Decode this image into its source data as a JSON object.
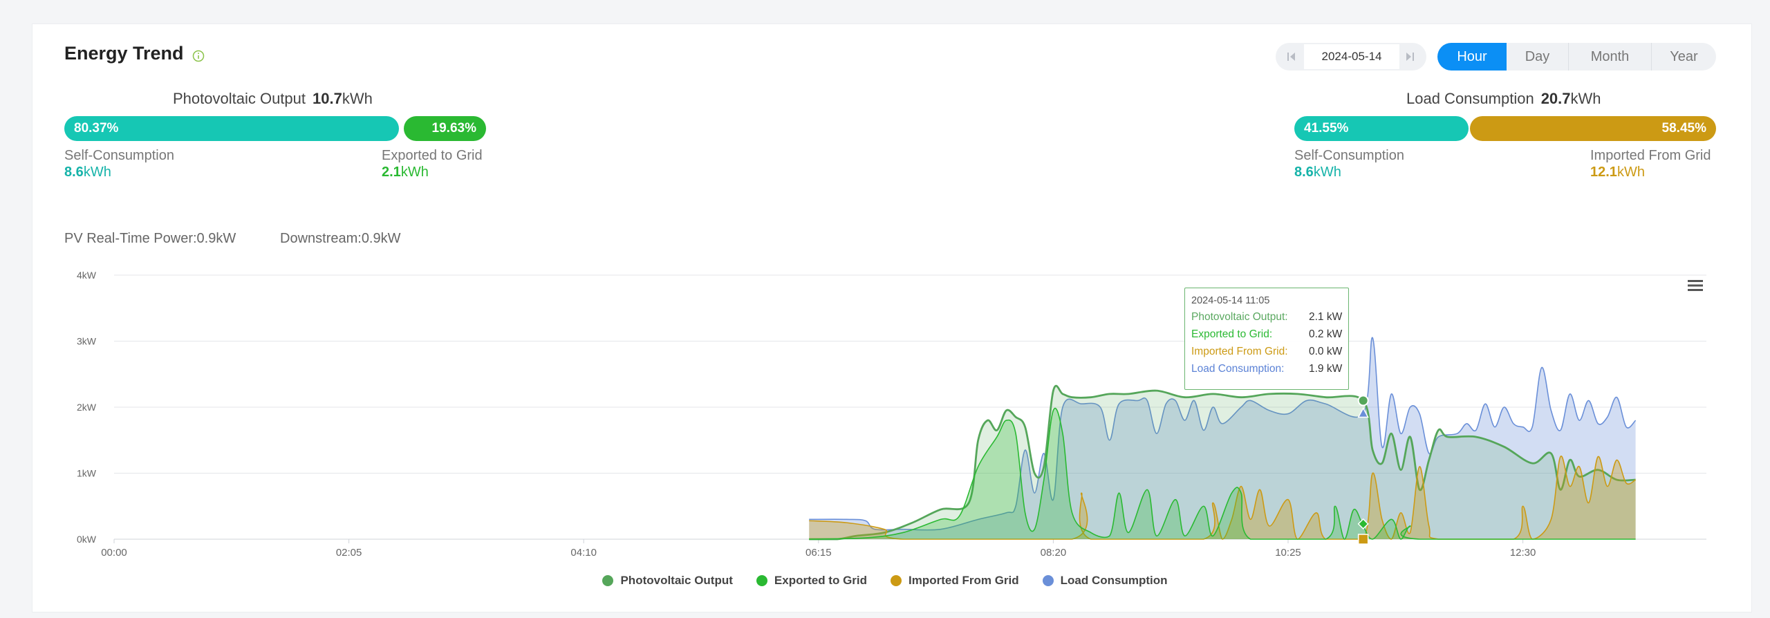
{
  "header": {
    "title": "Energy Trend"
  },
  "date_picker": {
    "value": "2024-05-14"
  },
  "range_tabs": [
    {
      "label": "Hour",
      "active": true
    },
    {
      "label": "Day",
      "active": false
    },
    {
      "label": "Month",
      "active": false
    },
    {
      "label": "Year",
      "active": false
    }
  ],
  "pv_summary": {
    "label": "Photovoltaic Output",
    "total": "10.7",
    "unit": "kWh",
    "self_pct": "80.37%",
    "export_pct": "19.63%",
    "self_fraction": 0.8037,
    "self_label": "Self-Consumption",
    "self_value": "8.6",
    "export_label": "Exported to Grid",
    "export_value": "2.1"
  },
  "load_summary": {
    "label": "Load Consumption",
    "total": "20.7",
    "unit": "kWh",
    "self_pct": "41.55%",
    "import_pct": "58.45%",
    "self_fraction": 0.4155,
    "self_label": "Self-Consumption",
    "self_value": "8.6",
    "import_label": "Imported From Grid",
    "import_value": "12.1"
  },
  "realtime": {
    "pv": "PV Real-Time Power:0.9kW",
    "downstream": "Downstream:0.9kW"
  },
  "tooltip": {
    "date": "2024-05-14 11:05",
    "rows": [
      {
        "name": "Photovoltaic Output:",
        "value": "2.1 kW",
        "color": "#5aa860"
      },
      {
        "name": "Exported to Grid:",
        "value": "0.2 kW",
        "color": "#2ab932"
      },
      {
        "name": "Imported From Grid:",
        "value": "0.0 kW",
        "color": "#cc9a14"
      },
      {
        "name": "Load Consumption:",
        "value": "1.9 kW",
        "color": "#5b82d6"
      }
    ]
  },
  "colors": {
    "teal": "#16c7b4",
    "green": "#2ab932",
    "gold": "#cc9a14",
    "pv": "#55a65a",
    "exported": "#2ab932",
    "imported": "#cc9a14",
    "load": "#6a8fd8"
  },
  "chart_data": {
    "type": "area",
    "x_ticks": [
      "00:00",
      "02:05",
      "04:10",
      "06:15",
      "08:20",
      "10:25",
      "12:30"
    ],
    "y_ticks": [
      "0kW",
      "1kW",
      "2kW",
      "3kW",
      "4kW"
    ],
    "ylim": [
      0,
      4
    ],
    "grid": true,
    "legend_position": "bottom",
    "series": [
      {
        "name": "Photovoltaic Output",
        "color": "#55a65a",
        "points": [
          [
            "06:10",
            0.0
          ],
          [
            "06:25",
            0.0
          ],
          [
            "06:35",
            0.05
          ],
          [
            "06:50",
            0.1
          ],
          [
            "07:05",
            0.25
          ],
          [
            "07:20",
            0.45
          ],
          [
            "07:35",
            0.55
          ],
          [
            "07:40",
            1.5
          ],
          [
            "07:45",
            1.8
          ],
          [
            "07:50",
            1.65
          ],
          [
            "07:55",
            1.95
          ],
          [
            "08:00",
            1.85
          ],
          [
            "08:05",
            1.7
          ],
          [
            "08:10",
            1.0
          ],
          [
            "08:15",
            1.1
          ],
          [
            "08:20",
            2.25
          ],
          [
            "08:25",
            2.2
          ],
          [
            "08:30",
            2.15
          ],
          [
            "08:40",
            2.15
          ],
          [
            "08:50",
            2.2
          ],
          [
            "09:00",
            2.2
          ],
          [
            "09:15",
            2.25
          ],
          [
            "09:30",
            2.15
          ],
          [
            "09:45",
            2.2
          ],
          [
            "10:00",
            2.15
          ],
          [
            "10:15",
            2.2
          ],
          [
            "10:30",
            2.2
          ],
          [
            "10:45",
            2.15
          ],
          [
            "11:05",
            2.1
          ],
          [
            "11:10",
            1.35
          ],
          [
            "11:15",
            1.15
          ],
          [
            "11:20",
            1.6
          ],
          [
            "11:25",
            1.05
          ],
          [
            "11:30",
            1.55
          ],
          [
            "11:35",
            0.75
          ],
          [
            "11:40",
            1.2
          ],
          [
            "11:45",
            1.65
          ],
          [
            "11:50",
            1.55
          ],
          [
            "12:05",
            1.55
          ],
          [
            "12:20",
            1.4
          ],
          [
            "12:35",
            1.15
          ],
          [
            "12:45",
            1.3
          ],
          [
            "12:50",
            0.75
          ],
          [
            "12:55",
            1.2
          ],
          [
            "13:00",
            0.95
          ],
          [
            "13:10",
            1.05
          ],
          [
            "13:20",
            0.9
          ],
          [
            "13:30",
            0.9
          ]
        ]
      },
      {
        "name": "Exported to Grid",
        "color": "#2ab932",
        "points": [
          [
            "06:10",
            0.0
          ],
          [
            "06:40",
            0.02
          ],
          [
            "07:00",
            0.1
          ],
          [
            "07:20",
            0.3
          ],
          [
            "07:30",
            0.35
          ],
          [
            "07:40",
            1.1
          ],
          [
            "07:50",
            1.55
          ],
          [
            "07:55",
            1.8
          ],
          [
            "08:00",
            1.6
          ],
          [
            "08:05",
            0.4
          ],
          [
            "08:10",
            0.15
          ],
          [
            "08:15",
            0.9
          ],
          [
            "08:20",
            1.95
          ],
          [
            "08:25",
            1.6
          ],
          [
            "08:30",
            0.4
          ],
          [
            "08:40",
            0.1
          ],
          [
            "08:50",
            0.05
          ],
          [
            "08:55",
            0.7
          ],
          [
            "09:00",
            0.1
          ],
          [
            "09:10",
            0.75
          ],
          [
            "09:15",
            0.05
          ],
          [
            "09:25",
            0.6
          ],
          [
            "09:30",
            0.05
          ],
          [
            "09:40",
            0.5
          ],
          [
            "09:45",
            0.05
          ],
          [
            "09:55",
            0.7
          ],
          [
            "10:00",
            0.7
          ],
          [
            "10:05",
            0.0
          ],
          [
            "10:45",
            0.0
          ],
          [
            "10:50",
            0.5
          ],
          [
            "10:55",
            0.0
          ],
          [
            "11:00",
            0.45
          ],
          [
            "11:05",
            0.2
          ],
          [
            "11:10",
            0.0
          ],
          [
            "11:20",
            0.3
          ],
          [
            "11:25",
            0.0
          ],
          [
            "11:30",
            0.2
          ],
          [
            "11:35",
            0.0
          ],
          [
            "13:30",
            0.0
          ]
        ]
      },
      {
        "name": "Imported From Grid",
        "color": "#cc9a14",
        "points": [
          [
            "06:10",
            0.28
          ],
          [
            "06:30",
            0.25
          ],
          [
            "06:50",
            0.15
          ],
          [
            "07:00",
            0.0
          ],
          [
            "08:30",
            0.0
          ],
          [
            "08:35",
            0.7
          ],
          [
            "08:40",
            0.0
          ],
          [
            "09:40",
            0.0
          ],
          [
            "09:45",
            0.55
          ],
          [
            "09:50",
            0.0
          ],
          [
            "09:55",
            0.3
          ],
          [
            "10:00",
            0.8
          ],
          [
            "10:05",
            0.3
          ],
          [
            "10:10",
            0.75
          ],
          [
            "10:15",
            0.2
          ],
          [
            "10:25",
            0.6
          ],
          [
            "10:30",
            0.0
          ],
          [
            "10:40",
            0.4
          ],
          [
            "10:45",
            0.0
          ],
          [
            "11:05",
            0.0
          ],
          [
            "11:10",
            1.0
          ],
          [
            "11:15",
            0.3
          ],
          [
            "11:20",
            0.0
          ],
          [
            "11:25",
            0.4
          ],
          [
            "11:30",
            0.1
          ],
          [
            "11:35",
            1.1
          ],
          [
            "11:40",
            0.2
          ],
          [
            "11:45",
            0.0
          ],
          [
            "12:25",
            0.0
          ],
          [
            "12:30",
            0.5
          ],
          [
            "12:35",
            0.0
          ],
          [
            "12:45",
            0.3
          ],
          [
            "12:50",
            1.25
          ],
          [
            "12:55",
            0.8
          ],
          [
            "13:00",
            1.1
          ],
          [
            "13:05",
            0.55
          ],
          [
            "13:10",
            1.25
          ],
          [
            "13:15",
            0.8
          ],
          [
            "13:20",
            1.2
          ],
          [
            "13:25",
            0.85
          ],
          [
            "13:30",
            0.9
          ]
        ]
      },
      {
        "name": "Load Consumption",
        "color": "#6a8fd8",
        "points": [
          [
            "06:10",
            0.3
          ],
          [
            "06:30",
            0.3
          ],
          [
            "06:40",
            0.28
          ],
          [
            "06:45",
            0.15
          ],
          [
            "07:00",
            0.15
          ],
          [
            "07:20",
            0.15
          ],
          [
            "07:40",
            0.3
          ],
          [
            "07:55",
            0.4
          ],
          [
            "08:00",
            0.5
          ],
          [
            "08:05",
            1.35
          ],
          [
            "08:10",
            0.7
          ],
          [
            "08:15",
            1.3
          ],
          [
            "08:20",
            0.6
          ],
          [
            "08:25",
            2.0
          ],
          [
            "08:35",
            2.05
          ],
          [
            "08:45",
            2.0
          ],
          [
            "08:50",
            1.5
          ],
          [
            "08:55",
            2.05
          ],
          [
            "09:05",
            2.1
          ],
          [
            "09:10",
            2.1
          ],
          [
            "09:15",
            1.6
          ],
          [
            "09:20",
            2.05
          ],
          [
            "09:25",
            2.1
          ],
          [
            "09:30",
            1.8
          ],
          [
            "09:35",
            2.1
          ],
          [
            "09:40",
            1.65
          ],
          [
            "09:45",
            2.0
          ],
          [
            "09:50",
            1.75
          ],
          [
            "10:00",
            2.0
          ],
          [
            "10:05",
            2.1
          ],
          [
            "10:15",
            1.95
          ],
          [
            "10:25",
            1.9
          ],
          [
            "10:35",
            2.1
          ],
          [
            "10:45",
            2.05
          ],
          [
            "11:05",
            1.9
          ],
          [
            "11:10",
            3.05
          ],
          [
            "11:15",
            1.4
          ],
          [
            "11:20",
            2.2
          ],
          [
            "11:25",
            1.6
          ],
          [
            "11:30",
            2.0
          ],
          [
            "11:35",
            1.9
          ],
          [
            "11:40",
            1.3
          ],
          [
            "11:45",
            1.55
          ],
          [
            "11:55",
            1.6
          ],
          [
            "12:00",
            1.75
          ],
          [
            "12:05",
            1.65
          ],
          [
            "12:10",
            2.05
          ],
          [
            "12:15",
            1.7
          ],
          [
            "12:20",
            2.0
          ],
          [
            "12:25",
            1.75
          ],
          [
            "12:30",
            1.7
          ],
          [
            "12:35",
            1.7
          ],
          [
            "12:40",
            2.6
          ],
          [
            "12:45",
            1.95
          ],
          [
            "12:50",
            1.65
          ],
          [
            "12:55",
            2.2
          ],
          [
            "13:00",
            1.8
          ],
          [
            "13:05",
            2.1
          ],
          [
            "13:10",
            1.75
          ],
          [
            "13:15",
            1.85
          ],
          [
            "13:20",
            2.15
          ],
          [
            "13:25",
            1.7
          ],
          [
            "13:30",
            1.8
          ]
        ]
      }
    ],
    "highlight_time": "11:05",
    "x_start": "00:00",
    "x_end": "13:30"
  }
}
